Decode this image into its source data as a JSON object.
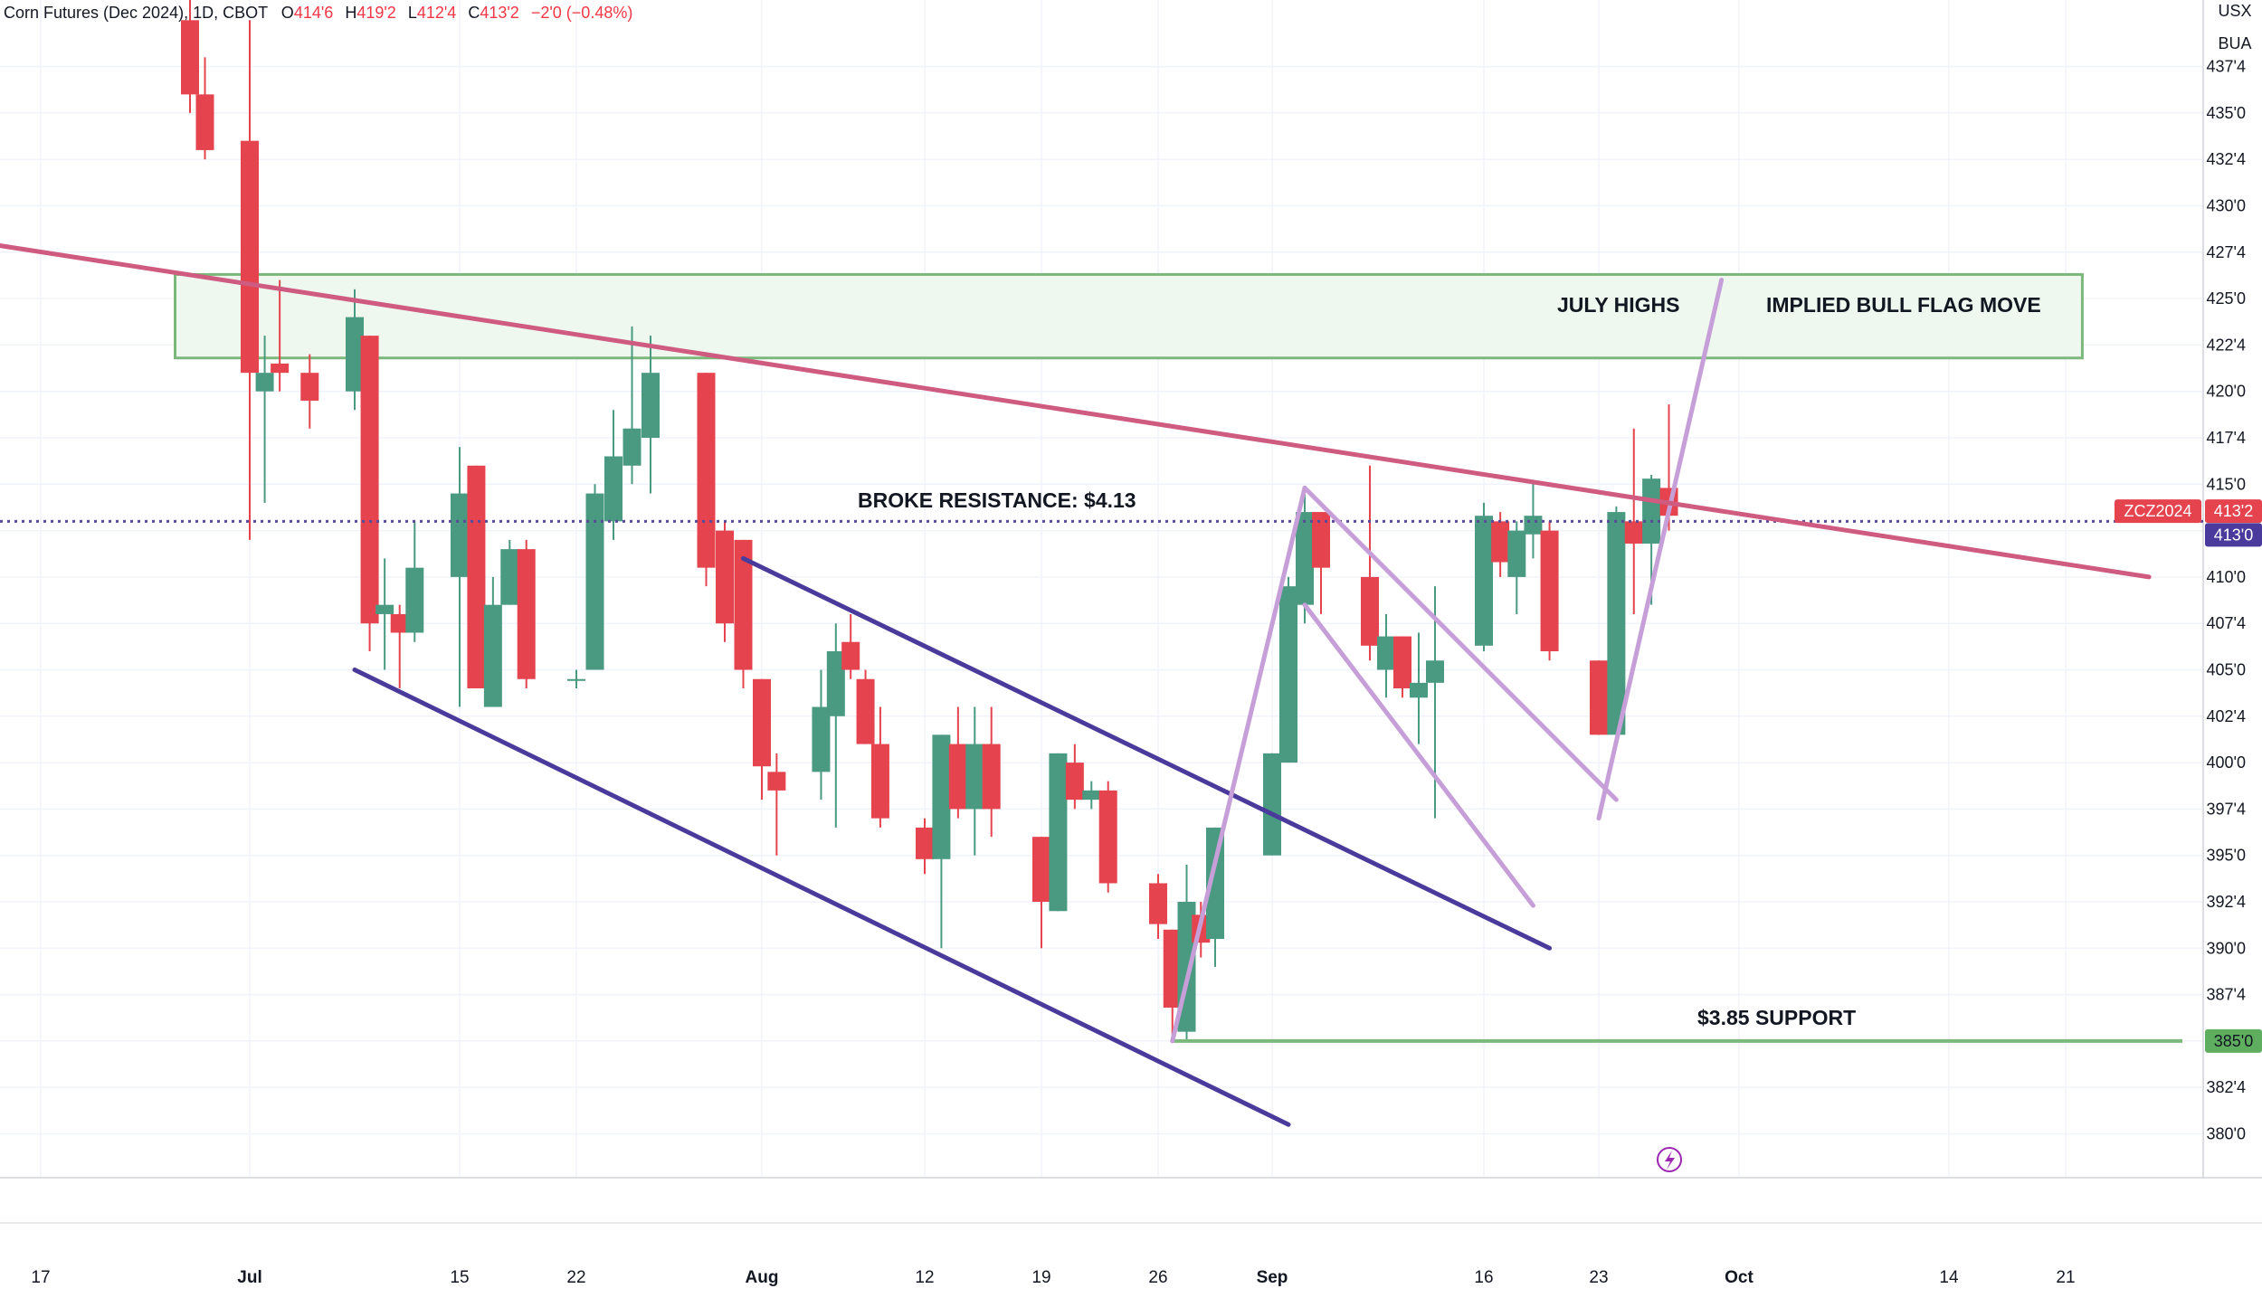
{
  "header": {
    "symbol": "Corn Futures (Dec 2024), 1D, CBOT",
    "open_label": "O",
    "open": "414'6",
    "high_label": "H",
    "high": "419'2",
    "low_label": "L",
    "low": "412'4",
    "close_label": "C",
    "close": "413'2",
    "change": "−2'0 (−0.48%)"
  },
  "axis_units": {
    "currency": "USX",
    "unit": "BUA"
  },
  "price_tags": {
    "symbol_tag": "ZCZ2024",
    "last_price": "413'2",
    "line_price": "413'0",
    "support_price": "385'0"
  },
  "colors": {
    "up": "#4a9a82",
    "down": "#e5434d",
    "resistance_trendline": "#cf5b81",
    "channel": "#4a3a9c",
    "flag": "#c69ed8",
    "zone_border": "#7cb87c",
    "zone_fill": "#eef8ee",
    "support_line": "#7cb87c",
    "dotted_line": "#5a4a9c"
  },
  "chart_data": {
    "type": "candlestick",
    "title": "Corn Futures (Dec 2024), 1D, CBOT",
    "y_axis": {
      "ticks": [
        {
          "v": 437.5,
          "label": "437'4"
        },
        {
          "v": 435,
          "label": "435'0"
        },
        {
          "v": 432.5,
          "label": "432'4"
        },
        {
          "v": 430,
          "label": "430'0"
        },
        {
          "v": 427.5,
          "label": "427'4"
        },
        {
          "v": 425,
          "label": "425'0"
        },
        {
          "v": 422.5,
          "label": "422'4"
        },
        {
          "v": 420,
          "label": "420'0"
        },
        {
          "v": 417.5,
          "label": "417'4"
        },
        {
          "v": 415,
          "label": "415'0"
        },
        {
          "v": 412.5,
          "label": "412'4"
        },
        {
          "v": 410,
          "label": "410'0"
        },
        {
          "v": 407.5,
          "label": "407'4"
        },
        {
          "v": 405,
          "label": "405'0"
        },
        {
          "v": 402.5,
          "label": "402'4"
        },
        {
          "v": 400,
          "label": "400'0"
        },
        {
          "v": 397.5,
          "label": "397'4"
        },
        {
          "v": 395,
          "label": "395'0"
        },
        {
          "v": 392.5,
          "label": "392'4"
        },
        {
          "v": 390,
          "label": "390'0"
        },
        {
          "v": 387.5,
          "label": "387'4"
        },
        {
          "v": 385,
          "label": "385'0"
        },
        {
          "v": 382.5,
          "label": "382'4"
        },
        {
          "v": 380,
          "label": "380'0"
        }
      ]
    },
    "x_axis": {
      "ticks": [
        {
          "date": "2024-06-17",
          "label": "17",
          "bold": false
        },
        {
          "date": "2024-07-01",
          "label": "Jul",
          "bold": true
        },
        {
          "date": "2024-07-15",
          "label": "15",
          "bold": false
        },
        {
          "date": "2024-07-22",
          "label": "22",
          "bold": false
        },
        {
          "date": "2024-08-01",
          "label": "Aug",
          "bold": true
        },
        {
          "date": "2024-08-12",
          "label": "12",
          "bold": false
        },
        {
          "date": "2024-08-19",
          "label": "19",
          "bold": false
        },
        {
          "date": "2024-08-26",
          "label": "26",
          "bold": false
        },
        {
          "date": "2024-09-03",
          "label": "Sep",
          "bold": true
        },
        {
          "date": "2024-09-16",
          "label": "16",
          "bold": false
        },
        {
          "date": "2024-09-23",
          "label": "23",
          "bold": false
        },
        {
          "date": "2024-10-01",
          "label": "Oct",
          "bold": true
        },
        {
          "date": "2024-10-14",
          "label": "14",
          "bold": false
        },
        {
          "date": "2024-10-21",
          "label": "21",
          "bold": false
        }
      ]
    },
    "candles": [
      {
        "date": "2024-06-27",
        "o": 440.0,
        "h": 442.0,
        "l": 435.0,
        "c": 436.0
      },
      {
        "date": "2024-06-28",
        "o": 436.0,
        "h": 438.0,
        "l": 432.5,
        "c": 433.0
      },
      {
        "date": "2024-07-01",
        "o": 433.5,
        "h": 440.0,
        "l": 412.0,
        "c": 421.0
      },
      {
        "date": "2024-07-02",
        "o": 420.0,
        "h": 423.0,
        "l": 414.0,
        "c": 421.0
      },
      {
        "date": "2024-07-03",
        "o": 421.5,
        "h": 426.0,
        "l": 420.0,
        "c": 421.0
      },
      {
        "date": "2024-07-05",
        "o": 421.0,
        "h": 422.0,
        "l": 418.0,
        "c": 419.5
      },
      {
        "date": "2024-07-08",
        "o": 420.0,
        "h": 425.5,
        "l": 419.0,
        "c": 424.0
      },
      {
        "date": "2024-07-09",
        "o": 423.0,
        "h": 423.0,
        "l": 406.0,
        "c": 407.5
      },
      {
        "date": "2024-07-10",
        "o": 408.0,
        "h": 411.0,
        "l": 405.0,
        "c": 408.5
      },
      {
        "date": "2024-07-11",
        "o": 408.0,
        "h": 408.5,
        "l": 404.0,
        "c": 407.0
      },
      {
        "date": "2024-07-12",
        "o": 407.0,
        "h": 413.0,
        "l": 406.5,
        "c": 410.5
      },
      {
        "date": "2024-07-15",
        "o": 410.0,
        "h": 417.0,
        "l": 403.0,
        "c": 414.5
      },
      {
        "date": "2024-07-16",
        "o": 416.0,
        "h": 416.0,
        "l": 404.0,
        "c": 404.0
      },
      {
        "date": "2024-07-17",
        "o": 403.0,
        "h": 410.0,
        "l": 403.0,
        "c": 408.5
      },
      {
        "date": "2024-07-18",
        "o": 408.5,
        "h": 412.0,
        "l": 408.5,
        "c": 411.5
      },
      {
        "date": "2024-07-19",
        "o": 411.5,
        "h": 412.0,
        "l": 404.0,
        "c": 404.5
      },
      {
        "date": "2024-07-22",
        "o": 404.5,
        "h": 405.0,
        "l": 404.0,
        "c": 404.5
      },
      {
        "date": "2024-07-23",
        "o": 405.0,
        "h": 415.0,
        "l": 405.0,
        "c": 414.5
      },
      {
        "date": "2024-07-24",
        "o": 413.0,
        "h": 419.0,
        "l": 412.0,
        "c": 416.5
      },
      {
        "date": "2024-07-25",
        "o": 416.0,
        "h": 423.5,
        "l": 415.0,
        "c": 418.0
      },
      {
        "date": "2024-07-26",
        "o": 417.5,
        "h": 423.0,
        "l": 414.5,
        "c": 421.0
      },
      {
        "date": "2024-07-29",
        "o": 421.0,
        "h": 421.0,
        "l": 409.5,
        "c": 410.5
      },
      {
        "date": "2024-07-30",
        "o": 412.5,
        "h": 413.0,
        "l": 406.5,
        "c": 407.5
      },
      {
        "date": "2024-07-31",
        "o": 412.0,
        "h": 412.0,
        "l": 404.0,
        "c": 405.0
      },
      {
        "date": "2024-08-01",
        "o": 404.5,
        "h": 404.5,
        "l": 398.0,
        "c": 399.8
      },
      {
        "date": "2024-08-02",
        "o": 399.5,
        "h": 400.5,
        "l": 395.0,
        "c": 398.5
      },
      {
        "date": "2024-08-05",
        "o": 399.5,
        "h": 405.0,
        "l": 398.0,
        "c": 403.0
      },
      {
        "date": "2024-08-06",
        "o": 402.5,
        "h": 407.5,
        "l": 396.5,
        "c": 406.0
      },
      {
        "date": "2024-08-07",
        "o": 406.5,
        "h": 408.0,
        "l": 404.5,
        "c": 405.0
      },
      {
        "date": "2024-08-08",
        "o": 404.5,
        "h": 405.0,
        "l": 401.0,
        "c": 401.0
      },
      {
        "date": "2024-08-09",
        "o": 401.0,
        "h": 403.0,
        "l": 396.5,
        "c": 397.0
      },
      {
        "date": "2024-08-12",
        "o": 396.5,
        "h": 397.0,
        "l": 394.0,
        "c": 394.8
      },
      {
        "date": "2024-08-13",
        "o": 394.8,
        "h": 401.5,
        "l": 390.0,
        "c": 401.5
      },
      {
        "date": "2024-08-14",
        "o": 401.0,
        "h": 403.0,
        "l": 397.0,
        "c": 397.5
      },
      {
        "date": "2024-08-15",
        "o": 397.5,
        "h": 403.0,
        "l": 395.0,
        "c": 401.0
      },
      {
        "date": "2024-08-16",
        "o": 401.0,
        "h": 403.0,
        "l": 396.0,
        "c": 397.5
      },
      {
        "date": "2024-08-19",
        "o": 396.0,
        "h": 396.0,
        "l": 390.0,
        "c": 392.5
      },
      {
        "date": "2024-08-20",
        "o": 392.0,
        "h": 400.5,
        "l": 392.0,
        "c": 400.5
      },
      {
        "date": "2024-08-21",
        "o": 400.0,
        "h": 401.0,
        "l": 397.5,
        "c": 398.0
      },
      {
        "date": "2024-08-22",
        "o": 398.0,
        "h": 399.0,
        "l": 397.5,
        "c": 398.5
      },
      {
        "date": "2024-08-23",
        "o": 398.5,
        "h": 399.0,
        "l": 393.0,
        "c": 393.5
      },
      {
        "date": "2024-08-26",
        "o": 393.5,
        "h": 394.0,
        "l": 390.5,
        "c": 391.3
      },
      {
        "date": "2024-08-27",
        "o": 391.0,
        "h": 391.0,
        "l": 385.0,
        "c": 386.8
      },
      {
        "date": "2024-08-28",
        "o": 385.5,
        "h": 394.5,
        "l": 385.0,
        "c": 392.5
      },
      {
        "date": "2024-08-29",
        "o": 391.8,
        "h": 392.5,
        "l": 389.5,
        "c": 390.3
      },
      {
        "date": "2024-08-30",
        "o": 390.5,
        "h": 396.5,
        "l": 389.0,
        "c": 396.5
      },
      {
        "date": "2024-09-03",
        "o": 395.0,
        "h": 400.5,
        "l": 395.0,
        "c": 400.5
      },
      {
        "date": "2024-09-04",
        "o": 400.0,
        "h": 410.0,
        "l": 400.0,
        "c": 409.5
      },
      {
        "date": "2024-09-05",
        "o": 408.5,
        "h": 414.5,
        "l": 407.5,
        "c": 413.5
      },
      {
        "date": "2024-09-06",
        "o": 413.5,
        "h": 413.5,
        "l": 408.0,
        "c": 410.5
      },
      {
        "date": "2024-09-09",
        "o": 410.0,
        "h": 416.0,
        "l": 405.5,
        "c": 406.3
      },
      {
        "date": "2024-09-10",
        "o": 405.0,
        "h": 408.0,
        "l": 403.5,
        "c": 406.8
      },
      {
        "date": "2024-09-11",
        "o": 406.8,
        "h": 406.8,
        "l": 403.5,
        "c": 404.0
      },
      {
        "date": "2024-09-12",
        "o": 403.5,
        "h": 407.0,
        "l": 401.0,
        "c": 404.3
      },
      {
        "date": "2024-09-13",
        "o": 404.3,
        "h": 409.5,
        "l": 397.0,
        "c": 405.5
      },
      {
        "date": "2024-09-16",
        "o": 406.3,
        "h": 414.0,
        "l": 406.0,
        "c": 413.3
      },
      {
        "date": "2024-09-17",
        "o": 413.0,
        "h": 413.5,
        "l": 410.0,
        "c": 410.8
      },
      {
        "date": "2024-09-18",
        "o": 410.0,
        "h": 413.0,
        "l": 408.0,
        "c": 412.5
      },
      {
        "date": "2024-09-19",
        "o": 412.3,
        "h": 415.0,
        "l": 411.0,
        "c": 413.3
      },
      {
        "date": "2024-09-20",
        "o": 412.5,
        "h": 413.0,
        "l": 405.5,
        "c": 406.0
      },
      {
        "date": "2024-09-23",
        "o": 405.5,
        "h": 405.5,
        "l": 401.5,
        "c": 401.5
      },
      {
        "date": "2024-09-24",
        "o": 401.5,
        "h": 413.8,
        "l": 401.3,
        "c": 413.5
      },
      {
        "date": "2024-09-25",
        "o": 413.0,
        "h": 418.0,
        "l": 408.0,
        "c": 411.8
      },
      {
        "date": "2024-09-26",
        "o": 411.8,
        "h": 415.5,
        "l": 408.5,
        "c": 415.3
      },
      {
        "date": "2024-09-27",
        "o": 414.8,
        "h": 419.3,
        "l": 412.5,
        "c": 413.3
      }
    ]
  },
  "annotations": {
    "july_highs": "JULY HIGHS",
    "implied_bull_flag": "IMPLIED BULL FLAG MOVE",
    "broke_resistance": "BROKE RESISTANCE: $4.13",
    "support": "$3.85 SUPPORT"
  },
  "drawings": {
    "resistance_trendline": [
      {
        "date": "2024-06-01",
        "p": 429.5
      },
      {
        "date": "2024-10-26",
        "p": 410.0
      }
    ],
    "channel_upper": [
      {
        "date": "2024-07-31",
        "p": 411.0
      },
      {
        "date": "2024-09-20",
        "p": 390.0
      }
    ],
    "channel_lower": [
      {
        "date": "2024-07-08",
        "p": 405.0
      },
      {
        "date": "2024-09-04",
        "p": 380.5
      }
    ],
    "flag_pole": [
      {
        "date": "2024-08-27",
        "p": 385.0
      },
      {
        "date": "2024-09-05",
        "p": 414.8
      }
    ],
    "flag_upper": [
      {
        "date": "2024-09-05",
        "p": 414.8
      },
      {
        "date": "2024-09-24",
        "p": 398.0
      }
    ],
    "flag_lower": [
      {
        "date": "2024-09-05",
        "p": 408.5
      },
      {
        "date": "2024-09-19",
        "p": 392.3
      }
    ],
    "flag_projection": [
      {
        "date": "2024-09-23",
        "p": 397.0
      },
      {
        "date": "2024-09-30",
        "p": 426.0
      }
    ],
    "highs_zone": {
      "from": "2024-06-26",
      "to": "2024-10-22",
      "p_top": 426.3,
      "p_bottom": 421.8
    },
    "support_line": {
      "from": "2024-08-27",
      "to": "2024-10-28",
      "p": 385.0
    },
    "dotted_line": {
      "p": 413.0
    }
  }
}
